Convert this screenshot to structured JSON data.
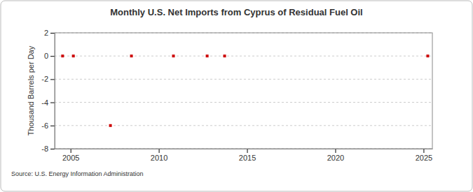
{
  "chart_data": {
    "type": "scatter",
    "title": "Monthly U.S. Net Imports from Cyprus of Residual Fuel Oil",
    "y_label": "Thousand Barrels per Day",
    "source": "Source: U.S. Energy Information Administration",
    "x": [
      2004.55,
      2005.16,
      2007.26,
      2008.45,
      2010.83,
      2012.74,
      2013.73,
      2025.24
    ],
    "values": [
      0,
      0,
      -6,
      0,
      0,
      0,
      0,
      0
    ],
    "color": "#cc0000",
    "marker": "square",
    "xlim": [
      2004.1,
      2025.5
    ],
    "xticks": [
      2005,
      2010,
      2015,
      2020,
      2025
    ],
    "ylim": [
      -8,
      2
    ],
    "yticks": [
      -8,
      -6,
      -4,
      -2,
      0,
      2
    ],
    "grid": true
  }
}
